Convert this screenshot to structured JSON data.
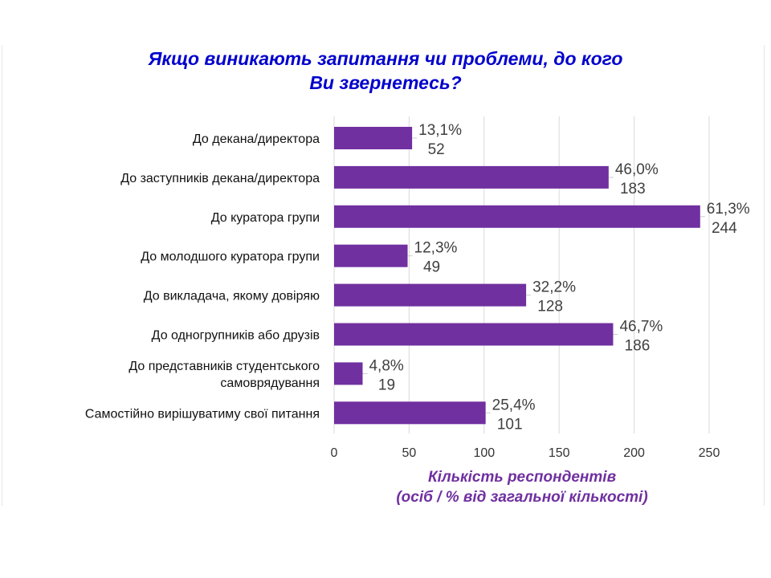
{
  "chart_data": {
    "type": "bar",
    "orientation": "horizontal",
    "title": "Якщо виникають запитання чи проблеми, до кого Ви звернетесь?",
    "categories": [
      [
        "До декана/директора"
      ],
      [
        "До заступників декана/директора"
      ],
      [
        "До куратора групи"
      ],
      [
        "До молодшого куратора групи"
      ],
      [
        "До викладача, якому довіряю"
      ],
      [
        "До одногрупників або друзів"
      ],
      [
        "До представників студентського",
        "самоврядування"
      ],
      [
        "Самостійно вирішуватиму свої питання"
      ]
    ],
    "values": [
      52,
      183,
      244,
      49,
      128,
      186,
      19,
      101
    ],
    "percent_labels": [
      "13,1%",
      "46,0%",
      "61,3%",
      "12,3%",
      "32,2%",
      "46,7%",
      "4,8%",
      "25,4%"
    ],
    "xlabel": [
      "Кількість респондентів",
      "(осіб / % від загальної кількості)"
    ],
    "xlim": [
      0,
      250
    ],
    "xticks": [
      0,
      50,
      100,
      150,
      200,
      250
    ],
    "grid": true,
    "bar_color": "#7030a0",
    "title_color": "#0000cc"
  }
}
